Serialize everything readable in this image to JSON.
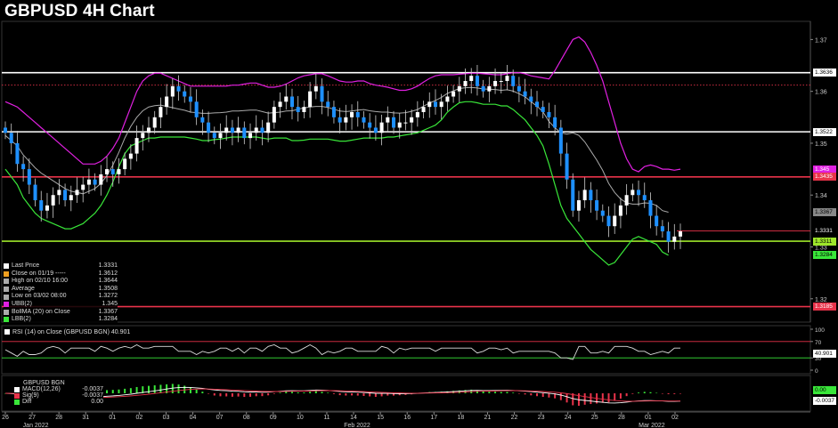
{
  "title": "GBPUSD 4H Chart",
  "colors": {
    "up": "#1e90ff",
    "down": "#1e90ff",
    "ubb": "#e020e0",
    "lbb": "#39e639",
    "ma": "#aaaaaa",
    "resist": "#e8334a",
    "support": "#9ee62a",
    "white_line": "#ffffff"
  },
  "legend": [
    {
      "label": "Last Price",
      "value": "1.3331",
      "color": "#ffffff"
    },
    {
      "label": "Close on 01/19 -----",
      "value": "1.3612",
      "color": "#f0a020"
    },
    {
      "label": "High on 02/10 16:00",
      "value": "1.3644",
      "color": "#aaaaaa"
    },
    {
      "label": "Average",
      "value": "1.3508",
      "color": "#aaaaaa"
    },
    {
      "label": "Low on 03/02 08:00",
      "value": "1.3272",
      "color": "#aaaaaa"
    },
    {
      "label": "UBB(2)",
      "value": "1.345",
      "color": "#e020e0"
    },
    {
      "label": "BollMA (20)  on Close",
      "value": "1.3367",
      "color": "#aaaaaa"
    },
    {
      "label": "LBB(2)",
      "value": "1.3284",
      "color": "#39e639"
    }
  ],
  "rsi_label": "RSI (14)  on Close (GBPUSD BGN)  40.901",
  "macd_title": "GBPUSD BGN",
  "macd_legend": [
    {
      "label": "MACD(12,26)",
      "value": "-0.0037",
      "color": "#ffffff"
    },
    {
      "label": "Sig(9)",
      "value": "-0.0037",
      "color": "#e8334a"
    },
    {
      "label": "Diff",
      "value": "0.00",
      "color": "#39e639"
    }
  ],
  "price_tags": [
    {
      "text": "1.3636",
      "price": 1.3636,
      "bg": "#ffffff",
      "fg": "#000000"
    },
    {
      "text": "1.3522",
      "price": 1.3522,
      "bg": "#ffffff",
      "fg": "#000000"
    },
    {
      "text": "1.345",
      "price": 1.345,
      "bg": "#e020e0",
      "fg": "#ffffff"
    },
    {
      "text": "1.3435",
      "price": 1.3435,
      "bg": "#e8334a",
      "fg": "#ffffff"
    },
    {
      "text": "1.3367",
      "price": 1.3367,
      "bg": "#888888",
      "fg": "#000000"
    },
    {
      "text": "1.3331",
      "price": 1.3331,
      "bg": "#000000",
      "fg": "#ffffff"
    },
    {
      "text": "1.3311",
      "price": 1.3311,
      "bg": "#9ee62a",
      "fg": "#000000"
    },
    {
      "text": "1.3284",
      "price": 1.3284,
      "bg": "#39e639",
      "fg": "#000000"
    },
    {
      "text": "1.3185",
      "price": 1.3185,
      "bg": "#e8334a",
      "fg": "#ffffff"
    }
  ],
  "rsi_tag": "40.901",
  "macd_tags": [
    {
      "text": "0.00",
      "bg": "#39e639",
      "fg": "#000000"
    },
    {
      "text": "-0.0037",
      "bg": "#ffffff",
      "fg": "#000000"
    }
  ],
  "chart_data": {
    "type": "candlestick",
    "title": "GBPUSD 4H Chart",
    "y_ticks": [
      1.37,
      1.36,
      1.35,
      1.34,
      1.33,
      1.32
    ],
    "ylim": [
      1.3155,
      1.3735
    ],
    "rsi_ticks": [
      100,
      70,
      30,
      0
    ],
    "horizontal_lines": [
      {
        "price": 1.3636,
        "color": "#ffffff",
        "style": "solid"
      },
      {
        "price": 1.3612,
        "color": "#e8334a",
        "style": "dotted"
      },
      {
        "price": 1.3522,
        "color": "#ffffff",
        "style": "solid"
      },
      {
        "price": 1.3435,
        "color": "#e8334a",
        "style": "solid"
      },
      {
        "price": 1.3311,
        "color": "#9ee62a",
        "style": "solid"
      },
      {
        "price": 1.3331,
        "color": "#e8334a",
        "style": "thin"
      },
      {
        "price": 1.3185,
        "color": "#e8334a",
        "style": "solid"
      }
    ],
    "x_ticks": [
      "26",
      "27",
      "28",
      "31",
      "01",
      "02",
      "03",
      "04",
      "07",
      "08",
      "09",
      "10",
      "11",
      "14",
      "15",
      "16",
      "17",
      "18",
      "21",
      "22",
      "23",
      "24",
      "25",
      "28",
      "01",
      "02"
    ],
    "month_labels": [
      {
        "label": "Jan 2022",
        "index": 1
      },
      {
        "label": "Feb 2022",
        "index": 13
      },
      {
        "label": "Mar 2022",
        "index": 24
      }
    ],
    "close": [
      1.352,
      1.35,
      1.346,
      1.345,
      1.342,
      1.339,
      1.337,
      1.338,
      1.34,
      1.341,
      1.339,
      1.34,
      1.341,
      1.342,
      1.343,
      1.342,
      1.344,
      1.345,
      1.344,
      1.345,
      1.347,
      1.348,
      1.351,
      1.352,
      1.353,
      1.355,
      1.357,
      1.359,
      1.361,
      1.36,
      1.359,
      1.358,
      1.355,
      1.354,
      1.352,
      1.351,
      1.352,
      1.353,
      1.352,
      1.353,
      1.351,
      1.352,
      1.353,
      1.352,
      1.354,
      1.357,
      1.358,
      1.359,
      1.357,
      1.356,
      1.357,
      1.36,
      1.361,
      1.358,
      1.357,
      1.355,
      1.354,
      1.355,
      1.356,
      1.355,
      1.354,
      1.353,
      1.352,
      1.354,
      1.355,
      1.353,
      1.354,
      1.354,
      1.355,
      1.356,
      1.357,
      1.358,
      1.357,
      1.358,
      1.359,
      1.36,
      1.361,
      1.362,
      1.363,
      1.361,
      1.36,
      1.361,
      1.362,
      1.362,
      1.363,
      1.361,
      1.36,
      1.359,
      1.358,
      1.357,
      1.356,
      1.355,
      1.353,
      1.348,
      1.343,
      1.337,
      1.339,
      1.341,
      1.339,
      1.337,
      1.336,
      1.334,
      1.336,
      1.338,
      1.34,
      1.341,
      1.34,
      1.339,
      1.336,
      1.334,
      1.333,
      1.331,
      1.332,
      1.333
    ],
    "ubb": [
      1.358,
      1.3575,
      1.357,
      1.356,
      1.355,
      1.354,
      1.353,
      1.352,
      1.351,
      1.35,
      1.349,
      1.348,
      1.347,
      1.346,
      1.346,
      1.346,
      1.3465,
      1.3475,
      1.349,
      1.351,
      1.354,
      1.357,
      1.36,
      1.362,
      1.363,
      1.3635,
      1.3635,
      1.363,
      1.3625,
      1.362,
      1.3615,
      1.361,
      1.361,
      1.361,
      1.361,
      1.361,
      1.361,
      1.361,
      1.3612,
      1.3612,
      1.3614,
      1.3616,
      1.3616,
      1.3612,
      1.3608,
      1.3608,
      1.361,
      1.3614,
      1.362,
      1.3626,
      1.363,
      1.3632,
      1.3634,
      1.3634,
      1.363,
      1.3625,
      1.362,
      1.3618,
      1.3618,
      1.362,
      1.362,
      1.3615,
      1.3612,
      1.361,
      1.3608,
      1.3605,
      1.3602,
      1.3602,
      1.3605,
      1.361,
      1.3618,
      1.3625,
      1.363,
      1.3632,
      1.3632,
      1.3632,
      1.3633,
      1.3634,
      1.3635,
      1.3635,
      1.3634,
      1.3633,
      1.3632,
      1.3632,
      1.3634,
      1.3636,
      1.3636,
      1.3634,
      1.363,
      1.3628,
      1.3626,
      1.3624,
      1.364,
      1.366,
      1.368,
      1.37,
      1.3705,
      1.3695,
      1.3675,
      1.365,
      1.362,
      1.358,
      1.354,
      1.35,
      1.347,
      1.345,
      1.3445,
      1.3455,
      1.3458,
      1.3455,
      1.345,
      1.345,
      1.3448,
      1.345
    ],
    "lbb": [
      1.345,
      1.3435,
      1.342,
      1.3395,
      1.338,
      1.3365,
      1.3355,
      1.335,
      1.3345,
      1.334,
      1.3335,
      1.3335,
      1.334,
      1.3345,
      1.3355,
      1.3365,
      1.338,
      1.34,
      1.3425,
      1.3455,
      1.348,
      1.3495,
      1.35,
      1.3505,
      1.351,
      1.351,
      1.3512,
      1.3512,
      1.3512,
      1.3512,
      1.3512,
      1.351,
      1.3508,
      1.3505,
      1.3505,
      1.3507,
      1.3508,
      1.351,
      1.3512,
      1.3512,
      1.3512,
      1.3512,
      1.3512,
      1.351,
      1.3508,
      1.351,
      1.351,
      1.351,
      1.3505,
      1.3505,
      1.3506,
      1.3508,
      1.3508,
      1.3508,
      1.3508,
      1.3506,
      1.3504,
      1.3504,
      1.3506,
      1.3508,
      1.351,
      1.351,
      1.351,
      1.351,
      1.3512,
      1.3512,
      1.3514,
      1.3516,
      1.3518,
      1.352,
      1.3525,
      1.353,
      1.3535,
      1.3545,
      1.356,
      1.357,
      1.3578,
      1.358,
      1.358,
      1.3578,
      1.3575,
      1.3575,
      1.3575,
      1.3572,
      1.3572,
      1.3565,
      1.3555,
      1.3545,
      1.353,
      1.3515,
      1.3495,
      1.346,
      1.342,
      1.338,
      1.3355,
      1.334,
      1.3325,
      1.331,
      1.3295,
      1.3285,
      1.3275,
      1.3265,
      1.327,
      1.3285,
      1.33,
      1.3315,
      1.332,
      1.3315,
      1.331,
      1.3305,
      1.329,
      1.3284
    ],
    "rsi_tick_values": [
      100,
      70,
      30,
      0
    ],
    "rsi_last": 40.901,
    "macd_last": -0.0037,
    "sig_last": -0.0037,
    "diff_last": 0.0
  }
}
